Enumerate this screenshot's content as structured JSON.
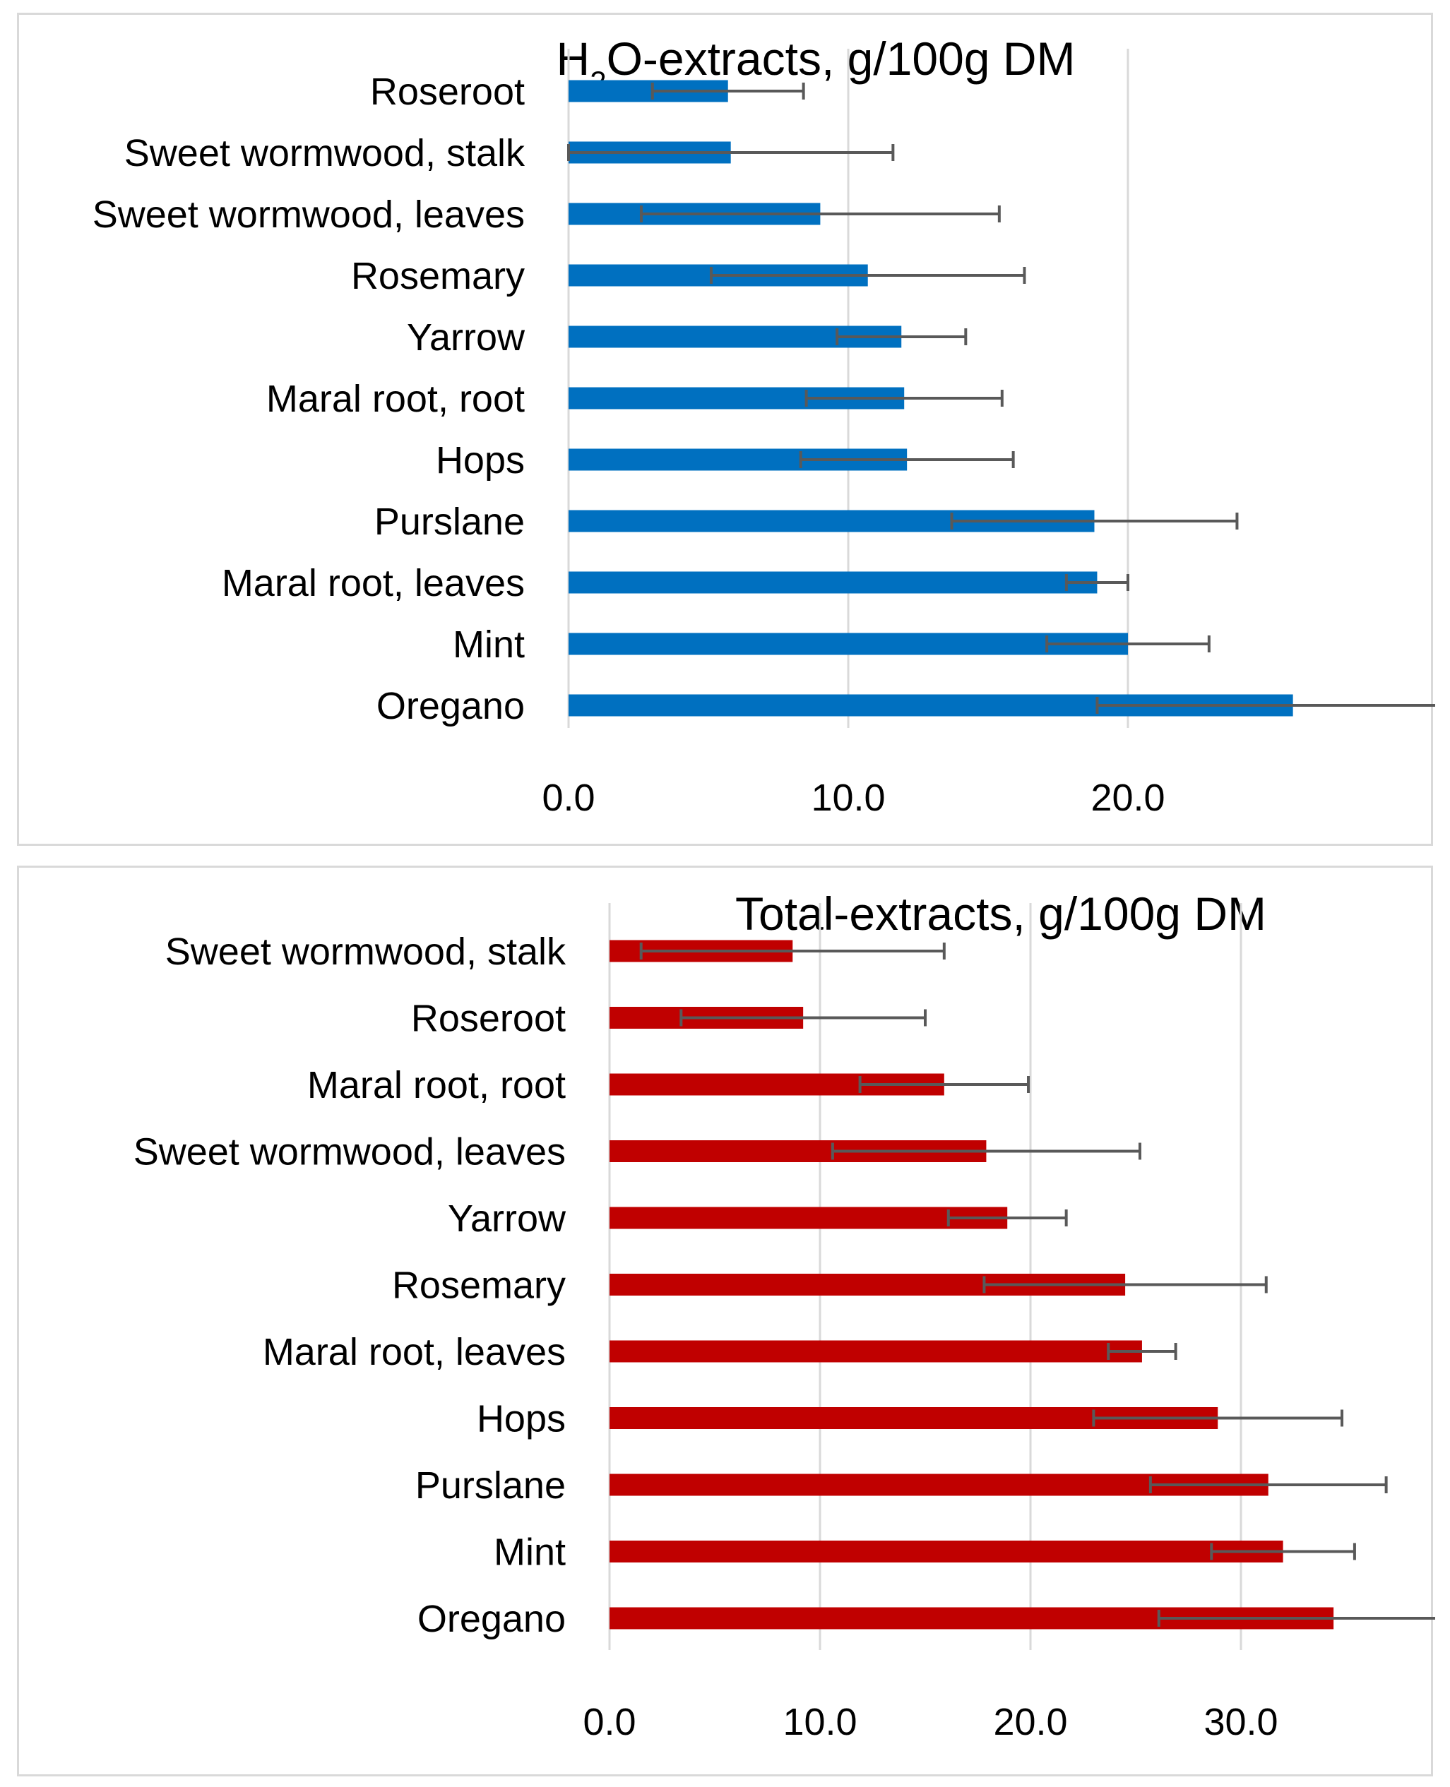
{
  "colors": {
    "h2o_bar": "#0070c0",
    "total_bar": "#c00000",
    "error_bar": "#595959",
    "grid": "#d9d9d9",
    "axis": "#d9d9d9"
  },
  "chart_data": [
    {
      "type": "bar",
      "orientation": "horizontal",
      "title": "H2O-extracts, g/100g DM",
      "title_parts": {
        "prefix": "H",
        "subscript": "2",
        "suffix": "O-extracts, g/100g DM"
      },
      "categories": [
        "Roseroot",
        "Sweet wormwood, stalk",
        "Sweet wormwood, leaves",
        "Rosemary",
        "Yarrow",
        "Maral root, root",
        "Hops",
        "Purslane",
        "Maral root, leaves",
        "Mint",
        "Oregano"
      ],
      "values": [
        5.7,
        5.8,
        9.0,
        10.7,
        11.9,
        12.0,
        12.1,
        18.8,
        18.9,
        20.0,
        25.9
      ],
      "errors": [
        2.7,
        5.8,
        6.4,
        5.6,
        2.3,
        3.5,
        3.8,
        5.1,
        1.1,
        2.9,
        7.0
      ],
      "xlim": [
        0,
        28
      ],
      "xticks": [
        "0.0",
        "10.0",
        "20.0"
      ],
      "grid": true
    },
    {
      "type": "bar",
      "orientation": "horizontal",
      "title": "Total-extracts, g/100g DM",
      "categories": [
        "Sweet wormwood, stalk",
        "Roseroot",
        "Maral root, root",
        "Sweet wormwood, leaves",
        "Yarrow",
        "Rosemary",
        "Maral root, leaves",
        "Hops",
        "Purslane",
        "Mint",
        "Oregano"
      ],
      "values": [
        8.7,
        9.2,
        15.9,
        17.9,
        18.9,
        24.5,
        25.3,
        28.9,
        31.3,
        32.0,
        34.4
      ],
      "errors": [
        7.2,
        5.8,
        4.0,
        7.3,
        2.8,
        6.7,
        1.6,
        5.9,
        5.6,
        3.4,
        8.3
      ],
      "xlim": [
        0,
        35
      ],
      "xticks": [
        "0.0",
        "10.0",
        "20.0",
        "30.0"
      ],
      "grid": true
    }
  ]
}
